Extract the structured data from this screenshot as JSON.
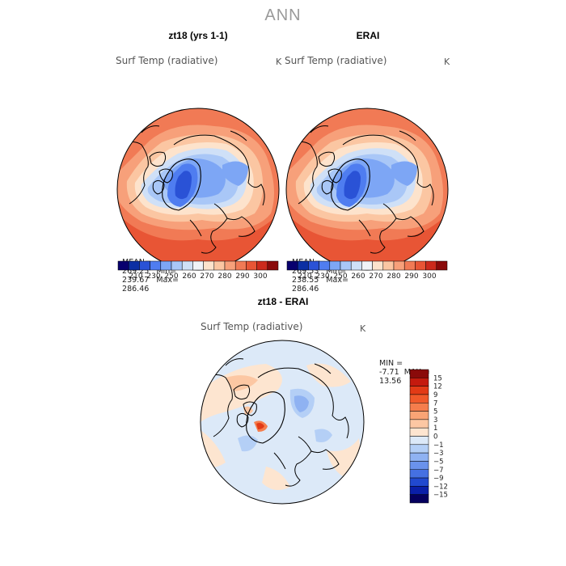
{
  "figure": {
    "title": "ANN"
  },
  "panels": [
    {
      "title": "zt18 (yrs 1-1)",
      "variable": "Surf Temp (radiative)",
      "units": "K",
      "stats": {
        "mean_label": "MEAN=",
        "mean": "269.25",
        "min_label": "Min=",
        "min": "239.67",
        "max_label": "Max=",
        "max": "286.46"
      },
      "colorbar": {
        "ticks": [
          "210",
          "230",
          "250",
          "260",
          "270",
          "280",
          "290",
          "300"
        ],
        "colors": [
          "#08006e",
          "#0c2fa3",
          "#2a52d6",
          "#4f7df0",
          "#7da6f5",
          "#a9c7f7",
          "#cfe0f7",
          "#f0f3f8",
          "#fde3cc",
          "#fbc6a2",
          "#f7a07a",
          "#f17a55",
          "#e85535",
          "#cc2a1c",
          "#8a0a0a"
        ]
      }
    },
    {
      "title": "ERAI",
      "variable": "Surf Temp (radiative)",
      "units": "K",
      "stats": {
        "mean_label": "MEAN=",
        "mean": "269.53",
        "min_label": "Min=",
        "min": "238.55",
        "max_label": "Max=",
        "max": "286.46"
      },
      "colorbar": {
        "ticks": [
          "210",
          "230",
          "250",
          "260",
          "270",
          "280",
          "290",
          "300"
        ],
        "colors": [
          "#08006e",
          "#0c2fa3",
          "#2a52d6",
          "#4f7df0",
          "#7da6f5",
          "#a9c7f7",
          "#cfe0f7",
          "#f0f3f8",
          "#fde3cc",
          "#fbc6a2",
          "#f7a07a",
          "#f17a55",
          "#e85535",
          "#cc2a1c",
          "#8a0a0a"
        ]
      }
    },
    {
      "title": "zt18 - ERAI",
      "variable": "Surf Temp (radiative)",
      "units": "K",
      "stats": {
        "min_label": "MIN =",
        "min": "-7.71",
        "max_label": "MAX =",
        "max": "13.56"
      },
      "colorbar": {
        "ticks": [
          "15",
          "12",
          "9",
          "7",
          "5",
          "3",
          "1",
          "0",
          "−1",
          "−3",
          "−5",
          "−7",
          "−9",
          "−12",
          "−15"
        ],
        "colors": [
          "#8a0a0a",
          "#c41a0e",
          "#e23a16",
          "#f0592a",
          "#f57d4c",
          "#f9a475",
          "#fcc7a3",
          "#fde5d0",
          "#dce9f8",
          "#b4cff6",
          "#8fb2f2",
          "#6a92ec",
          "#4570e2",
          "#2149cf",
          "#0a1fa8",
          "#05005e"
        ]
      }
    }
  ]
}
